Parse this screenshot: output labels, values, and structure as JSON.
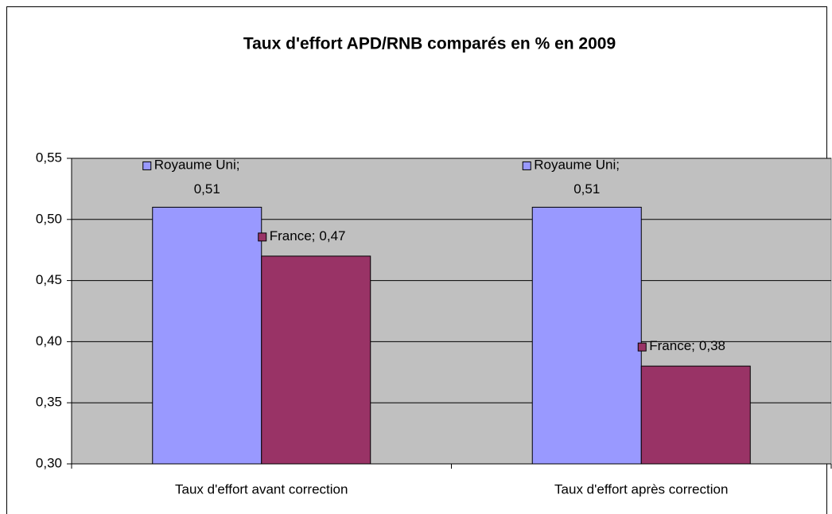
{
  "chart_data": {
    "type": "bar",
    "title": "Taux d'effort APD/RNB comparés en % en 2009",
    "categories": [
      "Taux d'effort avant correction",
      "Taux d'effort après correction"
    ],
    "series": [
      {
        "name": "Royaume Uni",
        "color": "#9999ff",
        "values": [
          0.51,
          0.51
        ],
        "value_labels": [
          "0,51",
          "0,51"
        ]
      },
      {
        "name": "France",
        "color": "#993366",
        "values": [
          0.47,
          0.38
        ],
        "value_labels": [
          "0,47",
          "0,38"
        ]
      }
    ],
    "data_label_separator": ";",
    "ylim": [
      0.3,
      0.55
    ],
    "yticks": [
      {
        "value": 0.3,
        "label": "0,30"
      },
      {
        "value": 0.35,
        "label": "0,35"
      },
      {
        "value": 0.4,
        "label": "0,40"
      },
      {
        "value": 0.45,
        "label": "0,45"
      },
      {
        "value": 0.5,
        "label": "0,50"
      },
      {
        "value": 0.55,
        "label": "0,55"
      }
    ],
    "grid": true,
    "plot_background": "#c0c0c0"
  }
}
